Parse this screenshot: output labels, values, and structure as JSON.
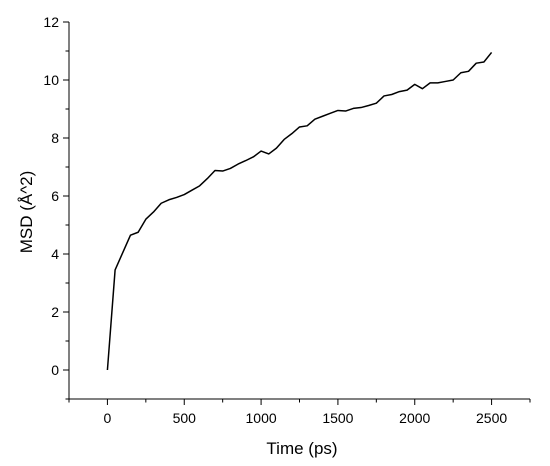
{
  "chart_data": {
    "type": "line",
    "title": "",
    "xlabel": "Time (ps)",
    "ylabel": "MSD (Å^2)",
    "xlim": [
      -250,
      2750
    ],
    "ylim": [
      -1,
      12
    ],
    "xticks": [
      0,
      500,
      1000,
      1500,
      2000,
      2500
    ],
    "xtick_labels": [
      "0",
      "500",
      "1000",
      "1500",
      "2000",
      "2500"
    ],
    "yticks": [
      0,
      2,
      4,
      6,
      8,
      10,
      12
    ],
    "ytick_labels": [
      "0",
      "2",
      "4",
      "6",
      "8",
      "10",
      "12"
    ],
    "grid": false,
    "legend": "none",
    "line_color": "#000000",
    "series": [
      {
        "x": [
          0,
          50,
          100,
          150,
          200,
          250,
          300,
          350,
          400,
          450,
          500,
          550,
          600,
          650,
          700,
          750,
          800,
          850,
          900,
          950,
          1000,
          1050,
          1100,
          1150,
          1200,
          1250,
          1300,
          1350,
          1400,
          1450,
          1500,
          1550,
          1600,
          1650,
          1700,
          1750,
          1800,
          1850,
          1900,
          1950,
          2000,
          2050,
          2100,
          2150,
          2200,
          2250,
          2300,
          2350,
          2400,
          2450,
          2500
        ],
        "values": [
          0.0,
          3.45,
          4.05,
          4.65,
          4.75,
          5.2,
          5.45,
          5.75,
          5.87,
          5.95,
          6.05,
          6.2,
          6.35,
          6.6,
          6.88,
          6.86,
          6.95,
          7.1,
          7.22,
          7.35,
          7.55,
          7.45,
          7.65,
          7.95,
          8.15,
          8.38,
          8.42,
          8.65,
          8.75,
          8.85,
          8.95,
          8.93,
          9.02,
          9.05,
          9.12,
          9.2,
          9.45,
          9.5,
          9.6,
          9.65,
          9.85,
          9.7,
          9.9,
          9.9,
          9.95,
          10.0,
          10.25,
          10.3,
          10.58,
          10.62,
          10.95
        ]
      }
    ]
  }
}
